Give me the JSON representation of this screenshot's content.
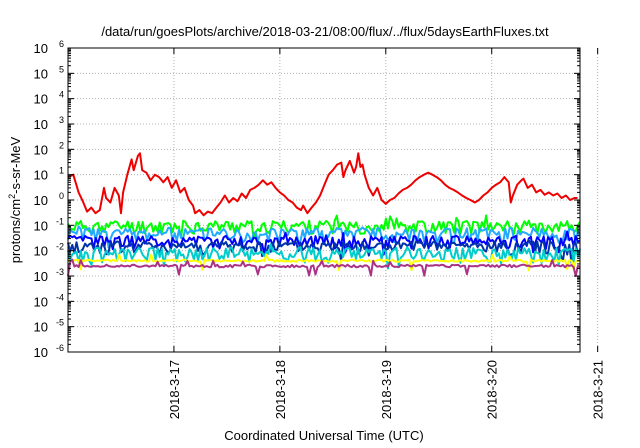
{
  "chart_data": {
    "type": "line",
    "title": "/data/run/goesPlots/archive/2018-03-21/08:00/flux/../flux/5daysEarthFluxes.txt",
    "xlabel": "Coordinated Universal Time (UTC)",
    "ylabel": {
      "base": "protons/cm",
      "sup": "2",
      "rest": "-s-sr-MeV"
    },
    "y_scale": "log",
    "ylim_exponents": [
      -6,
      6
    ],
    "y_ticks": [
      {
        "base": "10",
        "exp": "-6"
      },
      {
        "base": "10",
        "exp": "-5"
      },
      {
        "base": "10",
        "exp": "-4"
      },
      {
        "base": "10",
        "exp": "-3"
      },
      {
        "base": "10",
        "exp": "-2"
      },
      {
        "base": "10",
        "exp": "-1"
      },
      {
        "base": "10",
        "exp": "0"
      },
      {
        "base": "10",
        "exp": "1"
      },
      {
        "base": "10",
        "exp": "2"
      },
      {
        "base": "10",
        "exp": "3"
      },
      {
        "base": "10",
        "exp": "4"
      },
      {
        "base": "10",
        "exp": "5"
      },
      {
        "base": "10",
        "exp": "6"
      }
    ],
    "x_range_days": [
      "2018-03-16 00:00",
      "2018-03-21 08:00"
    ],
    "x_ticks": [
      "2018-3-17",
      "2018-3-18",
      "2018-3-19",
      "2018-3-20",
      "2018-3-21"
    ],
    "grid": true,
    "legend": "none",
    "series": [
      {
        "color": "#ee0000",
        "values": [
          [
            0.0,
            8
          ],
          [
            0.05,
            10
          ],
          [
            0.1,
            2
          ],
          [
            0.14,
            0.9
          ],
          [
            0.18,
            0.35
          ],
          [
            0.22,
            0.5
          ],
          [
            0.26,
            0.3
          ],
          [
            0.3,
            0.4
          ],
          [
            0.34,
            3
          ],
          [
            0.36,
            1.2
          ],
          [
            0.4,
            0.8
          ],
          [
            0.44,
            3
          ],
          [
            0.48,
            1.5
          ],
          [
            0.5,
            0.3
          ],
          [
            0.52,
            2
          ],
          [
            0.56,
            10
          ],
          [
            0.6,
            40
          ],
          [
            0.62,
            15
          ],
          [
            0.66,
            55
          ],
          [
            0.68,
            70
          ],
          [
            0.7,
            15
          ],
          [
            0.74,
            12
          ],
          [
            0.78,
            6
          ],
          [
            0.82,
            10
          ],
          [
            0.86,
            8
          ],
          [
            0.9,
            5
          ],
          [
            0.94,
            8
          ],
          [
            0.98,
            3
          ],
          [
            1.02,
            6
          ],
          [
            1.06,
            2
          ],
          [
            1.1,
            3
          ],
          [
            1.14,
            1
          ],
          [
            1.18,
            0.6
          ],
          [
            1.2,
            0.3
          ],
          [
            1.24,
            0.4
          ],
          [
            1.28,
            0.25
          ],
          [
            1.32,
            0.35
          ],
          [
            1.36,
            0.3
          ],
          [
            1.4,
            0.5
          ],
          [
            1.44,
            0.8
          ],
          [
            1.48,
            1.5
          ],
          [
            1.52,
            0.8
          ],
          [
            1.56,
            1.2
          ],
          [
            1.6,
            0.9
          ],
          [
            1.64,
            1.8
          ],
          [
            1.68,
            1.2
          ],
          [
            1.72,
            2.5
          ],
          [
            1.76,
            3
          ],
          [
            1.8,
            4
          ],
          [
            1.84,
            6
          ],
          [
            1.88,
            4
          ],
          [
            1.92,
            5
          ],
          [
            1.96,
            3
          ],
          [
            2.0,
            2
          ],
          [
            2.04,
            1.5
          ],
          [
            2.08,
            1
          ],
          [
            2.12,
            0.8
          ],
          [
            2.16,
            0.5
          ],
          [
            2.2,
            0.4
          ],
          [
            2.22,
            0.6
          ],
          [
            2.26,
            0.3
          ],
          [
            2.3,
            0.5
          ],
          [
            2.34,
            0.8
          ],
          [
            2.38,
            1.5
          ],
          [
            2.42,
            4
          ],
          [
            2.46,
            10
          ],
          [
            2.5,
            15
          ],
          [
            2.54,
            25
          ],
          [
            2.58,
            30
          ],
          [
            2.6,
            8
          ],
          [
            2.62,
            15
          ],
          [
            2.66,
            35
          ],
          [
            2.7,
            12
          ],
          [
            2.72,
            20
          ],
          [
            2.74,
            70
          ],
          [
            2.76,
            20
          ],
          [
            2.78,
            25
          ],
          [
            2.8,
            10
          ],
          [
            2.84,
            3
          ],
          [
            2.88,
            1.5
          ],
          [
            2.92,
            3
          ],
          [
            2.96,
            1
          ],
          [
            3.0,
            0.7
          ],
          [
            3.04,
            1
          ],
          [
            3.08,
            1.2
          ],
          [
            3.12,
            1.8
          ],
          [
            3.16,
            2.5
          ],
          [
            3.2,
            3
          ],
          [
            3.24,
            4
          ],
          [
            3.28,
            6
          ],
          [
            3.32,
            8
          ],
          [
            3.36,
            10
          ],
          [
            3.4,
            12
          ],
          [
            3.44,
            10
          ],
          [
            3.48,
            8
          ],
          [
            3.52,
            6
          ],
          [
            3.56,
            4
          ],
          [
            3.6,
            3
          ],
          [
            3.64,
            2.5
          ],
          [
            3.68,
            2
          ],
          [
            3.72,
            1.5
          ],
          [
            3.76,
            1.2
          ],
          [
            3.8,
            1
          ],
          [
            3.84,
            0.8
          ],
          [
            3.88,
            1
          ],
          [
            3.92,
            1.5
          ],
          [
            3.96,
            2
          ],
          [
            4.0,
            3
          ],
          [
            4.04,
            4
          ],
          [
            4.08,
            5
          ],
          [
            4.12,
            8
          ],
          [
            4.16,
            5
          ],
          [
            4.18,
            0.8
          ],
          [
            4.2,
            1.5
          ],
          [
            4.24,
            4
          ],
          [
            4.28,
            6
          ],
          [
            4.3,
            7
          ],
          [
            4.34,
            3
          ],
          [
            4.38,
            4
          ],
          [
            4.42,
            2
          ],
          [
            4.46,
            2.5
          ],
          [
            4.5,
            1.6
          ],
          [
            4.54,
            2
          ],
          [
            4.58,
            1.5
          ],
          [
            4.62,
            1.8
          ],
          [
            4.66,
            1.2
          ],
          [
            4.7,
            1.5
          ],
          [
            4.74,
            1
          ],
          [
            4.78,
            1.2
          ],
          [
            4.81,
            1.2
          ]
        ]
      },
      {
        "color": "#00ff00",
        "level": 0.1,
        "noise": 0.55,
        "seed": 11
      },
      {
        "color": "#22aaff",
        "level": 0.05,
        "noise": 0.6,
        "seed": 23
      },
      {
        "color": "#0000ff",
        "level": 0.025,
        "noise": 0.55,
        "seed": 37
      },
      {
        "color": "#0033aa",
        "level": 0.015,
        "noise": 0.55,
        "seed": 41
      },
      {
        "color": "#00cccc",
        "level": 0.008,
        "noise": 0.6,
        "seed": 53
      },
      {
        "color": "#ffff00",
        "level": 0.004,
        "noise": 0.1,
        "seed": 61
      },
      {
        "color": "#aa3388",
        "level": 0.0025,
        "noise": 0.12,
        "seed": 71
      }
    ]
  }
}
